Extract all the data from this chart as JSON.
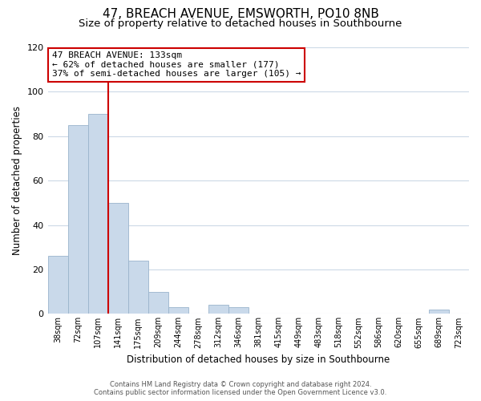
{
  "title": "47, BREACH AVENUE, EMSWORTH, PO10 8NB",
  "subtitle": "Size of property relative to detached houses in Southbourne",
  "xlabel": "Distribution of detached houses by size in Southbourne",
  "ylabel": "Number of detached properties",
  "bar_labels": [
    "38sqm",
    "72sqm",
    "107sqm",
    "141sqm",
    "175sqm",
    "209sqm",
    "244sqm",
    "278sqm",
    "312sqm",
    "346sqm",
    "381sqm",
    "415sqm",
    "449sqm",
    "483sqm",
    "518sqm",
    "552sqm",
    "586sqm",
    "620sqm",
    "655sqm",
    "689sqm",
    "723sqm"
  ],
  "bar_heights": [
    26,
    85,
    90,
    50,
    24,
    10,
    3,
    0,
    4,
    3,
    0,
    0,
    0,
    0,
    0,
    0,
    0,
    0,
    0,
    2,
    0
  ],
  "bar_color": "#c9d9ea",
  "bar_edge_color": "#9ab4cc",
  "vline_color": "#cc0000",
  "annotation_text": "47 BREACH AVENUE: 133sqm\n← 62% of detached houses are smaller (177)\n37% of semi-detached houses are larger (105) →",
  "annotation_box_color": "#ffffff",
  "annotation_box_edge": "#cc0000",
  "ylim": [
    0,
    120
  ],
  "yticks": [
    0,
    20,
    40,
    60,
    80,
    100,
    120
  ],
  "footnote1": "Contains HM Land Registry data © Crown copyright and database right 2024.",
  "footnote2": "Contains public sector information licensed under the Open Government Licence v3.0.",
  "background_color": "#ffffff",
  "grid_color": "#ccd9e6",
  "title_fontsize": 11,
  "subtitle_fontsize": 9.5
}
